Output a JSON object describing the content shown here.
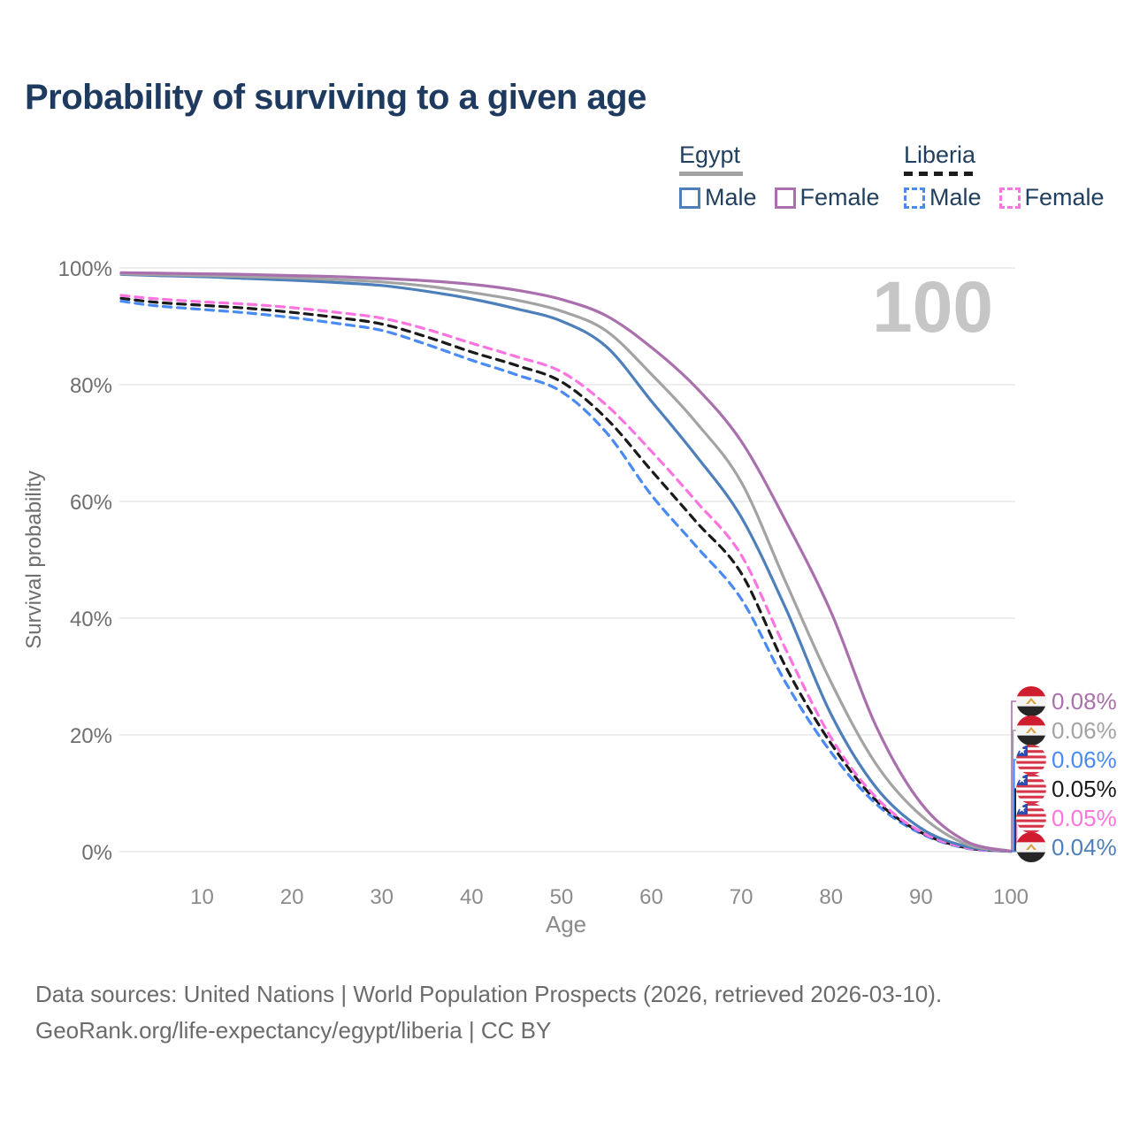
{
  "page": {
    "title": "Probability of surviving to a given age"
  },
  "legend": {
    "groups": [
      {
        "label": "Egypt",
        "style": "solid",
        "underline_color": "#a3a3a3",
        "items": [
          {
            "label": "Male",
            "color": "#4d7fba"
          },
          {
            "label": "Female",
            "color": "#aa6fad"
          }
        ]
      },
      {
        "label": "Liberia",
        "style": "dashed",
        "underline_color": "#1c1c1c",
        "items": [
          {
            "label": "Male",
            "color": "#4a8af5"
          },
          {
            "label": "Female",
            "color": "#fc74e0"
          }
        ]
      }
    ]
  },
  "chart_data": {
    "type": "line",
    "title": "Probability of surviving to a given age",
    "xlabel": "Age",
    "ylabel": "Survival probability",
    "xlim": [
      1,
      100
    ],
    "ylim": [
      0,
      100
    ],
    "grid": "horizontal",
    "legend_position": "top-right",
    "age_indicator": "100",
    "x_ticks": [
      10,
      20,
      30,
      40,
      50,
      60,
      70,
      80,
      90,
      100
    ],
    "y_ticks": [
      {
        "value": 100,
        "label": "100%"
      },
      {
        "value": 80,
        "label": "80%"
      },
      {
        "value": 60,
        "label": "60%"
      },
      {
        "value": 40,
        "label": "40%"
      },
      {
        "value": 20,
        "label": "20%"
      },
      {
        "value": 0,
        "label": "0%"
      }
    ],
    "x": [
      1,
      5,
      10,
      15,
      20,
      25,
      30,
      35,
      40,
      45,
      50,
      55,
      60,
      65,
      70,
      75,
      80,
      85,
      90,
      95,
      100
    ],
    "series": [
      {
        "id": "egypt-female",
        "name": "Egypt — Female",
        "country": "Egypt",
        "sex": "Female",
        "style": "solid",
        "color": "#aa6fad",
        "flag": "egypt",
        "end_label": "0.08%",
        "end_value": 0.08,
        "values": [
          99.2,
          99.1,
          99.0,
          98.9,
          98.7,
          98.5,
          98.2,
          97.8,
          97.2,
          96.2,
          94.6,
          91.8,
          86.4,
          79.5,
          70.3,
          56.5,
          41.0,
          21.5,
          8.3,
          1.8,
          0.08
        ]
      },
      {
        "id": "egypt-both",
        "name": "Egypt — Both sexes",
        "country": "Egypt",
        "sex": "All",
        "style": "solid",
        "color": "#a3a3a3",
        "flag": "egypt",
        "end_label": "0.06%",
        "end_value": 0.06,
        "values": [
          99.0,
          98.85,
          98.7,
          98.5,
          98.3,
          98.0,
          97.6,
          96.9,
          95.8,
          94.5,
          92.6,
          89.2,
          81.8,
          73.5,
          63.3,
          46.0,
          29.0,
          15.0,
          6.2,
          1.3,
          0.06
        ]
      },
      {
        "id": "liberia-male",
        "name": "Liberia — Male",
        "country": "Liberia",
        "sex": "Male",
        "style": "dashed",
        "color": "#4a8af5",
        "flag": "liberia",
        "end_label": "0.06%",
        "end_value": 0.06,
        "values": [
          94.3,
          93.5,
          92.9,
          92.3,
          91.5,
          90.5,
          89.3,
          86.9,
          84.2,
          81.7,
          78.8,
          71.8,
          61.1,
          52.3,
          43.3,
          28.8,
          17.0,
          8.2,
          3.1,
          0.6,
          0.06
        ]
      },
      {
        "id": "liberia-both",
        "name": "Liberia — Both sexes",
        "country": "Liberia",
        "sex": "All",
        "style": "dashed",
        "color": "#1a1a1a",
        "flag": "liberia",
        "end_label": "0.05%",
        "end_value": 0.05,
        "values": [
          94.8,
          94.1,
          93.6,
          93.1,
          92.4,
          91.5,
          90.4,
          88.2,
          85.6,
          83.3,
          80.5,
          74.2,
          65.3,
          56.5,
          47.7,
          31.5,
          18.5,
          8.8,
          3.3,
          0.7,
          0.05
        ]
      },
      {
        "id": "liberia-female",
        "name": "Liberia — Female",
        "country": "Liberia",
        "sex": "Female",
        "style": "dashed",
        "color": "#fc74e0",
        "flag": "liberia",
        "end_label": "0.05%",
        "end_value": 0.05,
        "values": [
          95.3,
          94.7,
          94.2,
          93.8,
          93.2,
          92.4,
          91.4,
          89.5,
          87.1,
          84.8,
          82.2,
          76.5,
          68.6,
          60.0,
          50.8,
          34.5,
          19.5,
          9.3,
          3.4,
          0.7,
          0.05
        ]
      },
      {
        "id": "egypt-male",
        "name": "Egypt — Male",
        "country": "Egypt",
        "sex": "Male",
        "style": "solid",
        "color": "#4d7fba",
        "flag": "egypt",
        "end_label": "0.04%",
        "end_value": 0.04,
        "values": [
          98.9,
          98.7,
          98.5,
          98.2,
          97.9,
          97.5,
          97.0,
          96.0,
          94.7,
          93.0,
          90.9,
          86.5,
          77.2,
          67.8,
          57.3,
          41.5,
          23.5,
          11.0,
          4.0,
          0.9,
          0.04
        ]
      }
    ],
    "colors": {
      "gridline": "#e9e9e9",
      "tick_text": "#8b8b8b",
      "axis_text": "#6e6e6e",
      "watermark": "#c6c6c6",
      "egypt_flag_red": "#d01c2f",
      "egypt_flag_black": "#262626",
      "egypt_flag_gold": "#d9a33c",
      "liberia_flag_red": "#d63448",
      "liberia_flag_blue": "#2b4db2"
    }
  },
  "footer": {
    "line1": "Data sources: United Nations | World Population Prospects (2026, retrieved 2026-03-10).",
    "line2": "GeoRank.org/life-expectancy/egypt/liberia | CC BY"
  }
}
